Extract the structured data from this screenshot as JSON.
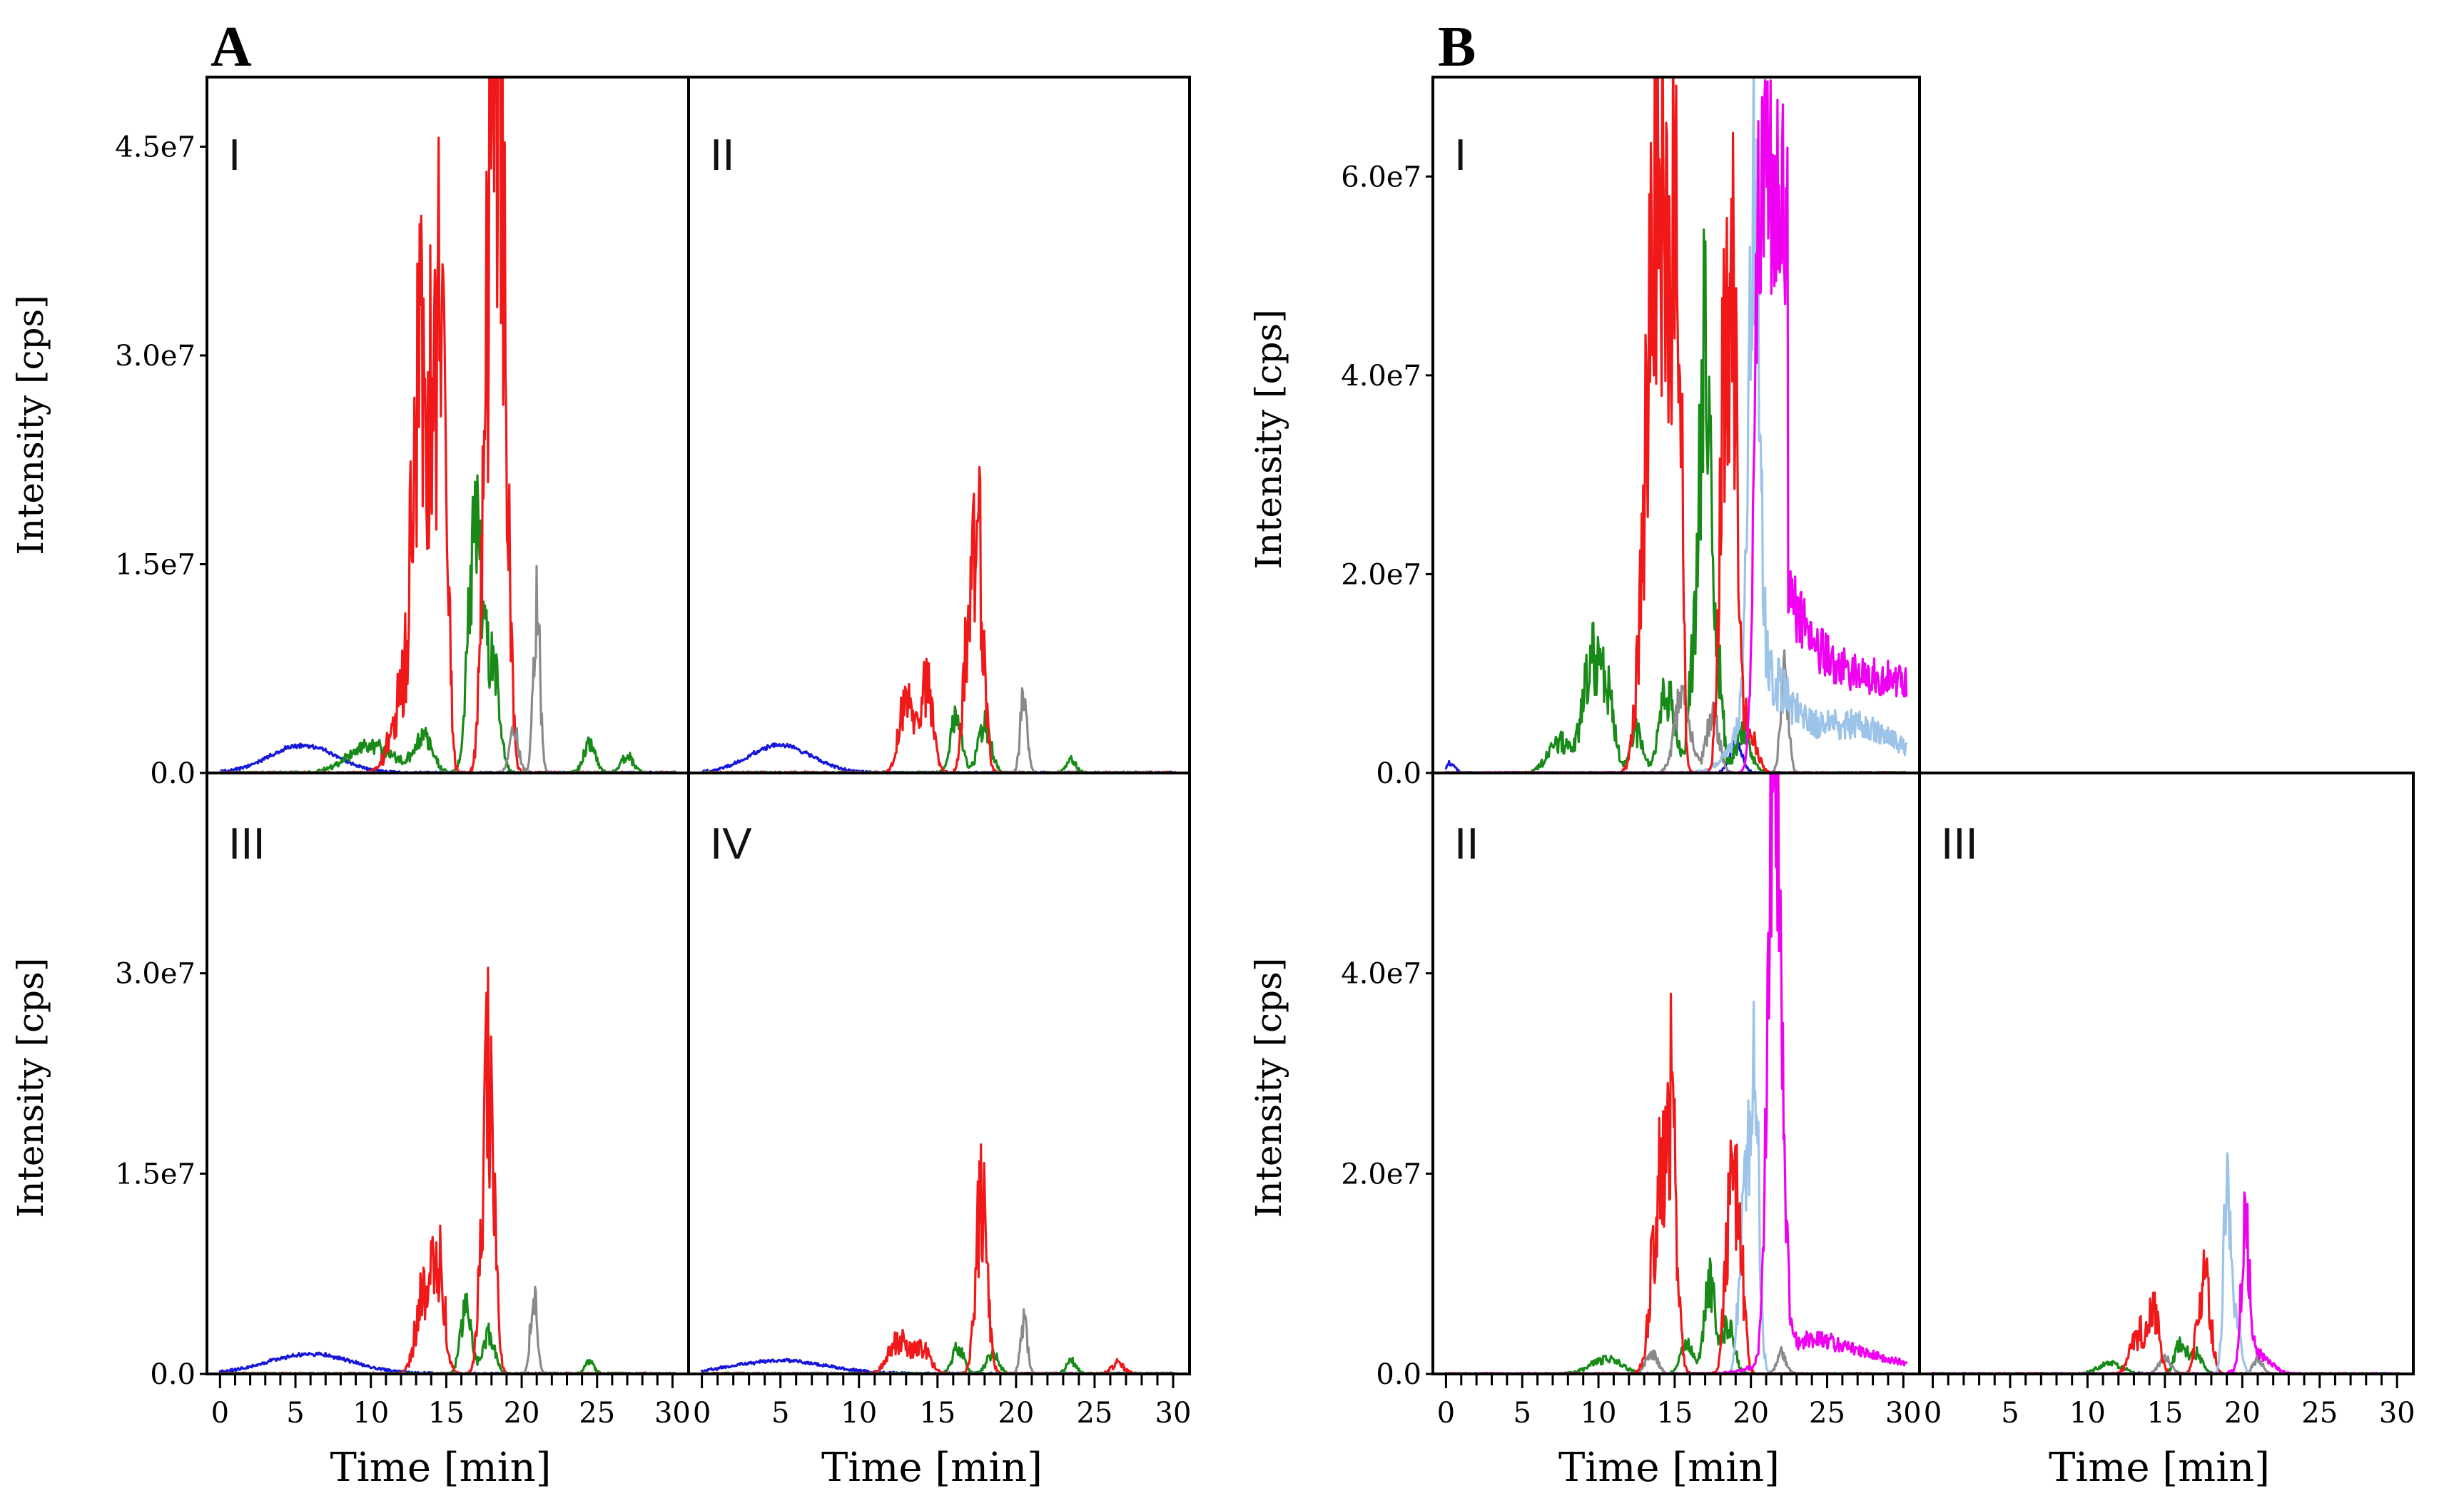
{
  "figure": {
    "panel_a_letter": "A",
    "panel_b_letter": "B"
  },
  "colors": {
    "red": "#f01818",
    "green": "#178a17",
    "blue": "#1717d8",
    "gray": "#8a8a8a",
    "magenta": "#f000f0",
    "lightblue": "#9cc3e8"
  },
  "chart_data": [
    {
      "type": "line",
      "id": "A-I",
      "label": "I",
      "xlabel": "",
      "ylabel": "Intensity [cps]",
      "xlim": [
        -0.3,
        30.5
      ],
      "ylim": [
        0,
        50000000.0
      ],
      "yticks": [
        0,
        15000000.0,
        30000000.0,
        45000000.0
      ],
      "ytick_labels": [
        "0.0",
        "1.5e7",
        "3.0e7",
        "4.5e7"
      ],
      "xticks": [],
      "series": [
        {
          "name": "blue",
          "peaks": [
            [
              5.5,
              2000000.0,
              2.2
            ]
          ],
          "noise": 0.05
        },
        {
          "name": "green",
          "peaks": [
            [
              10,
              2000000.0,
              1.5
            ],
            [
              13.5,
              2500000.0,
              0.6
            ],
            [
              16.8,
              12000000.0,
              0.4
            ],
            [
              17.3,
              8000000.0,
              0.5
            ],
            [
              18.2,
              6000000.0,
              0.4
            ],
            [
              24.5,
              2000000.0,
              0.4
            ],
            [
              27,
              1200000.0,
              0.4
            ]
          ],
          "noise": 0.3
        },
        {
          "name": "red",
          "peaks": [
            [
              13.2,
              28000000.0,
              0.45
            ],
            [
              14.2,
              24000000.0,
              0.4
            ],
            [
              14.8,
              26000000.0,
              0.3
            ],
            [
              17.7,
              25000000.0,
              0.35
            ],
            [
              18.3,
              45000000.0,
              0.3
            ],
            [
              18.8,
              26000000.0,
              0.35
            ],
            [
              12,
              5000000.0,
              0.7
            ]
          ],
          "noise": 0.45
        },
        {
          "name": "gray",
          "peaks": [
            [
              21,
              12000000.0,
              0.22
            ],
            [
              19.5,
              3000000.0,
              0.3
            ]
          ],
          "noise": 0.3
        }
      ]
    },
    {
      "type": "line",
      "id": "A-II",
      "label": "II",
      "xlabel": "",
      "ylabel": "",
      "xlim": [
        -0.3,
        30.5
      ],
      "ylim": [
        0,
        50000000.0
      ],
      "yticks": [],
      "ytick_labels": [],
      "xticks": [],
      "series": [
        {
          "name": "blue",
          "peaks": [
            [
              5,
              2000000.0,
              2.0
            ]
          ],
          "noise": 0.05
        },
        {
          "name": "green",
          "peaks": [
            [
              16.2,
              4000000.0,
              0.35
            ],
            [
              18,
              3500000.0,
              0.4
            ],
            [
              23.5,
              1000000.0,
              0.3
            ]
          ],
          "noise": 0.3
        },
        {
          "name": "red",
          "peaks": [
            [
              13,
              5000000.0,
              0.45
            ],
            [
              14.3,
              6000000.0,
              0.4
            ],
            [
              17.6,
              16000000.0,
              0.35
            ],
            [
              16.9,
              8000000.0,
              0.3
            ]
          ],
          "noise": 0.4
        },
        {
          "name": "gray",
          "peaks": [
            [
              20.5,
              5500000.0,
              0.22
            ]
          ],
          "noise": 0.3
        }
      ]
    },
    {
      "type": "line",
      "id": "A-III",
      "label": "III",
      "xlabel": "Time [min]",
      "ylabel": "Intensity [cps]",
      "xlim": [
        -0.3,
        30.5
      ],
      "ylim": [
        0,
        45000000.0
      ],
      "yticks": [
        0,
        15000000.0,
        30000000.0
      ],
      "ytick_labels": [
        "0.0",
        "1.5e7",
        "3.0e7"
      ],
      "xticks": [
        0,
        5,
        10,
        15,
        20,
        25,
        30
      ],
      "series": [
        {
          "name": "blue",
          "peaks": [
            [
              6,
              1500000.0,
              2.8
            ]
          ],
          "noise": 0.05
        },
        {
          "name": "green",
          "peaks": [
            [
              16.3,
              5000000.0,
              0.35
            ],
            [
              17.8,
              3000000.0,
              0.4
            ],
            [
              24.5,
              1000000.0,
              0.3
            ]
          ],
          "noise": 0.3
        },
        {
          "name": "red",
          "peaks": [
            [
              13.5,
              6000000.0,
              0.5
            ],
            [
              14.5,
              8000000.0,
              0.4
            ],
            [
              17.6,
              15000000.0,
              0.35
            ],
            [
              18,
              12000000.0,
              0.3
            ]
          ],
          "noise": 0.4
        },
        {
          "name": "gray",
          "peaks": [
            [
              20.8,
              6000000.0,
              0.22
            ]
          ],
          "noise": 0.3
        }
      ]
    },
    {
      "type": "line",
      "id": "A-IV",
      "label": "IV",
      "xlabel": "Time [min]",
      "ylabel": "",
      "xlim": [
        -0.3,
        30.5
      ],
      "ylim": [
        0,
        45000000.0
      ],
      "yticks": [],
      "ytick_labels": [],
      "xticks": [
        0,
        5,
        10,
        15,
        20,
        25,
        30
      ],
      "series": [
        {
          "name": "blue",
          "peaks": [
            [
              5,
              1000000.0,
              3.0
            ]
          ],
          "noise": 0.05
        },
        {
          "name": "green",
          "peaks": [
            [
              16.3,
              2000000.0,
              0.35
            ],
            [
              18.5,
              1500000.0,
              0.4
            ],
            [
              23.5,
              1000000.0,
              0.3
            ]
          ],
          "noise": 0.3
        },
        {
          "name": "red",
          "peaks": [
            [
              12.5,
              2500000.0,
              0.6
            ],
            [
              14,
              2000000.0,
              0.5
            ],
            [
              17.8,
              13000000.0,
              0.35
            ],
            [
              26.5,
              800000.0,
              0.4
            ]
          ],
          "noise": 0.4
        },
        {
          "name": "gray",
          "peaks": [
            [
              20.5,
              4000000.0,
              0.22
            ]
          ],
          "noise": 0.3
        }
      ]
    },
    {
      "type": "line",
      "id": "B-I",
      "label": "I",
      "xlabel": "",
      "ylabel": "Intensity [cps]",
      "xlim": [
        -0.3,
        30.5
      ],
      "ylim": [
        0,
        70000000.0
      ],
      "yticks": [
        0,
        20000000.0,
        40000000.0,
        60000000.0
      ],
      "ytick_labels": [
        "0.0",
        "2.0e7",
        "4.0e7",
        "6.0e7"
      ],
      "xticks": [],
      "series": [
        {
          "name": "blue",
          "peaks": [
            [
              0.3,
              1000000.0,
              0.3
            ],
            [
              19,
              3000000.0,
              0.4
            ]
          ],
          "noise": 0.2
        },
        {
          "name": "green",
          "peaks": [
            [
              7.5,
              3000000.0,
              0.8
            ],
            [
              9.5,
              10000000.0,
              0.55
            ],
            [
              10.5,
              8000000.0,
              0.5
            ],
            [
              12.5,
              4000000.0,
              0.4
            ],
            [
              14.5,
              8000000.0,
              0.5
            ],
            [
              16.3,
              12000000.0,
              0.35
            ],
            [
              17,
              47000000.0,
              0.3
            ],
            [
              17.8,
              12000000.0,
              0.3
            ],
            [
              19.5,
              4000000.0,
              0.5
            ]
          ],
          "noise": 0.35
        },
        {
          "name": "gray",
          "peaks": [
            [
              15.5,
              8000000.0,
              0.5
            ],
            [
              17.5,
              6000000.0,
              0.4
            ],
            [
              22.2,
              10000000.0,
              0.25
            ]
          ],
          "noise": 0.3
        },
        {
          "name": "lightblue",
          "peaks": [
            [
              20.2,
              52000000.0,
              0.35
            ],
            [
              21,
              8000000.0,
              1.5
            ],
            [
              25,
              3000000.0,
              3.0
            ],
            [
              28,
              2500000.0,
              3.0
            ]
          ],
          "noise": 0.3
        },
        {
          "name": "red",
          "peaks": [
            [
              13.3,
              30000000.0,
              0.55
            ],
            [
              14,
              38000000.0,
              0.45
            ],
            [
              14.6,
              35000000.0,
              0.35
            ],
            [
              15.2,
              55000000.0,
              0.25
            ],
            [
              18.2,
              35000000.0,
              0.3
            ],
            [
              18.8,
              45000000.0,
              0.3
            ],
            [
              19.8,
              5000000.0,
              0.5
            ]
          ],
          "noise": 0.4
        },
        {
          "name": "magenta",
          "plateau": [
            20.6,
            22.4,
            59000000.0,
            0.35
          ],
          "tail": [
            22.4,
            19000000.0,
            2.0,
            9000000.0
          ],
          "noise": 0.2
        }
      ]
    },
    {
      "type": "line",
      "id": "B-II",
      "label": "II",
      "xlabel": "Time [min]",
      "ylabel": "Intensity [cps]",
      "xlim": [
        -0.3,
        30.5
      ],
      "ylim": [
        0,
        60000000.0
      ],
      "yticks": [
        0,
        20000000.0,
        40000000.0
      ],
      "ytick_labels": [
        "0.0",
        "2.0e7",
        "4.0e7"
      ],
      "xticks": [
        0,
        5,
        10,
        15,
        20,
        25,
        30
      ],
      "series": [
        {
          "name": "green",
          "peaks": [
            [
              10.5,
              1500000.0,
              1.0
            ],
            [
              15.8,
              3000000.0,
              0.4
            ],
            [
              17.3,
              9000000.0,
              0.35
            ],
            [
              18.5,
              5000000.0,
              0.4
            ]
          ],
          "noise": 0.3
        },
        {
          "name": "gray",
          "peaks": [
            [
              13.5,
              2000000.0,
              0.4
            ],
            [
              22,
              2000000.0,
              0.3
            ]
          ],
          "noise": 0.3
        },
        {
          "name": "lightblue",
          "peaks": [
            [
              20.2,
              32000000.0,
              0.3
            ],
            [
              19.5,
              15000000.0,
              0.3
            ]
          ],
          "noise": 0.3
        },
        {
          "name": "red",
          "peaks": [
            [
              14,
              18000000.0,
              0.5
            ],
            [
              14.8,
              22000000.0,
              0.35
            ],
            [
              18.7,
              18000000.0,
              0.35
            ],
            [
              19.3,
              10000000.0,
              0.3
            ]
          ],
          "noise": 0.4
        },
        {
          "name": "magenta",
          "peaks": [
            [
              21.4,
              48000000.0,
              0.35
            ],
            [
              21.9,
              25000000.0,
              0.35
            ],
            [
              23.5,
              2500000.0,
              2.0
            ],
            [
              27,
              1800000.0,
              3.0
            ]
          ],
          "noise": 0.25
        }
      ]
    },
    {
      "type": "line",
      "id": "B-III",
      "label": "III",
      "xlabel": "Time [min]",
      "ylabel": "",
      "xlim": [
        -0.3,
        30.5
      ],
      "ylim": [
        0,
        60000000.0
      ],
      "yticks": [],
      "ytick_labels": [],
      "xticks": [
        0,
        5,
        10,
        15,
        20,
        25,
        30
      ],
      "series": [
        {
          "name": "green",
          "peaks": [
            [
              11.5,
              1000000.0,
              0.8
            ],
            [
              16,
              3000000.0,
              0.35
            ],
            [
              17,
              2000000.0,
              0.4
            ]
          ],
          "noise": 0.3
        },
        {
          "name": "gray",
          "peaks": [
            [
              15,
              1500000.0,
              0.4
            ],
            [
              21,
              1500000.0,
              0.3
            ]
          ],
          "noise": 0.3
        },
        {
          "name": "red",
          "peaks": [
            [
              13.3,
              4000000.0,
              0.5
            ],
            [
              14.3,
              5500000.0,
              0.35
            ],
            [
              17.3,
              7000000.0,
              0.3
            ],
            [
              17.8,
              6000000.0,
              0.3
            ]
          ],
          "noise": 0.4
        },
        {
          "name": "lightblue",
          "peaks": [
            [
              19,
              18000000.0,
              0.22
            ],
            [
              19.6,
              6000000.0,
              0.3
            ]
          ],
          "noise": 0.3
        },
        {
          "name": "magenta",
          "peaks": [
            [
              20.2,
              14000000.0,
              0.25
            ],
            [
              21,
              2000000.0,
              0.8
            ]
          ],
          "noise": 0.3
        }
      ]
    }
  ]
}
